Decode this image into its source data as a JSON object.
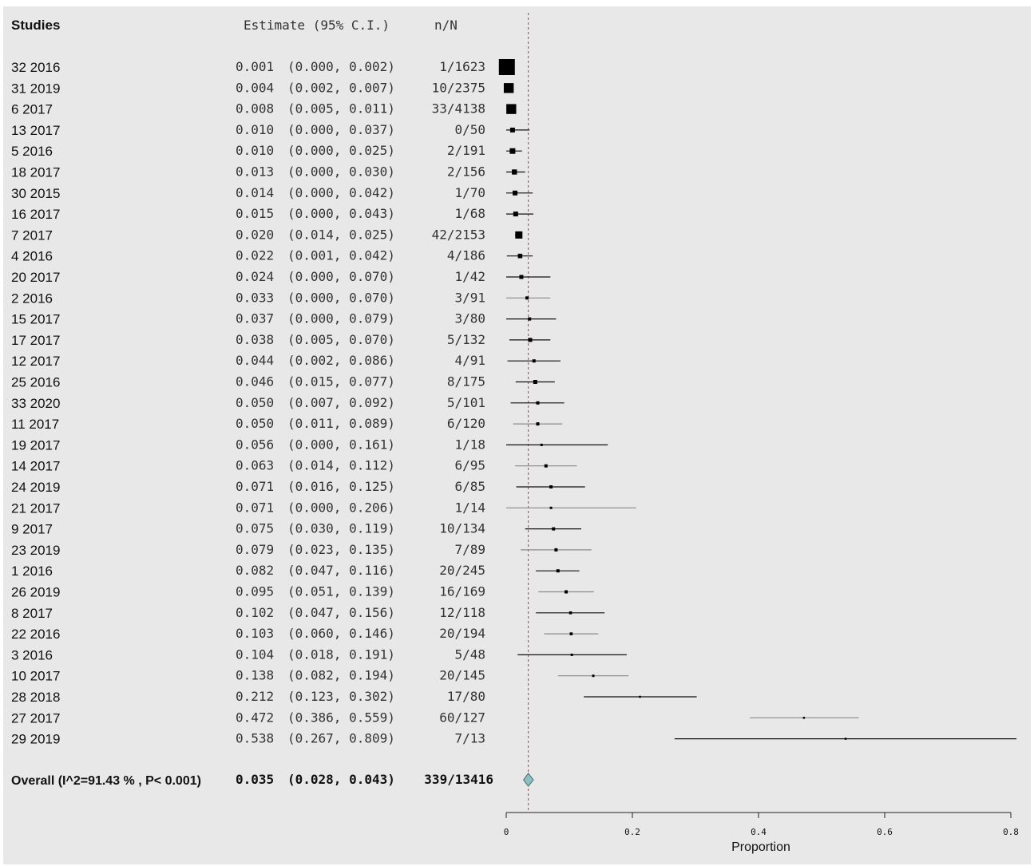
{
  "chart_data": {
    "type": "forest",
    "headers": {
      "studies": "Studies",
      "estimate": "Estimate (95% C.I.)",
      "nN": "n/N"
    },
    "studies": [
      {
        "label": "32 2016",
        "est": 0.001,
        "lo": 0.0,
        "hi": 0.002,
        "est_text": "0.001",
        "ci_text": "(0.000, 0.002)",
        "nN": "1/1623",
        "weight": 1.0
      },
      {
        "label": "31 2019",
        "est": 0.004,
        "lo": 0.002,
        "hi": 0.007,
        "est_text": "0.004",
        "ci_text": "(0.002, 0.007)",
        "nN": "10/2375",
        "weight": 0.62
      },
      {
        "label": "6 2017",
        "est": 0.008,
        "lo": 0.005,
        "hi": 0.011,
        "est_text": "0.008",
        "ci_text": "(0.005, 0.011)",
        "nN": "33/4138",
        "weight": 0.62
      },
      {
        "label": "13 2017",
        "est": 0.01,
        "lo": 0.0,
        "hi": 0.037,
        "est_text": "0.010",
        "ci_text": "(0.000, 0.037)",
        "nN": "0/50",
        "weight": 0.3
      },
      {
        "label": "5 2016",
        "est": 0.01,
        "lo": 0.0,
        "hi": 0.025,
        "est_text": "0.010",
        "ci_text": "(0.000, 0.025)",
        "nN": "2/191",
        "weight": 0.35
      },
      {
        "label": "18 2017",
        "est": 0.013,
        "lo": 0.0,
        "hi": 0.03,
        "est_text": "0.013",
        "ci_text": "(0.000, 0.030)",
        "nN": "2/156",
        "weight": 0.32
      },
      {
        "label": "30 2015",
        "est": 0.014,
        "lo": 0.0,
        "hi": 0.042,
        "est_text": "0.014",
        "ci_text": "(0.000, 0.042)",
        "nN": "1/70",
        "weight": 0.3
      },
      {
        "label": "16 2017",
        "est": 0.015,
        "lo": 0.0,
        "hi": 0.043,
        "est_text": "0.015",
        "ci_text": "(0.000, 0.043)",
        "nN": "1/68",
        "weight": 0.3
      },
      {
        "label": "7 2017",
        "est": 0.02,
        "lo": 0.014,
        "hi": 0.025,
        "est_text": "0.020",
        "ci_text": "(0.014, 0.025)",
        "nN": "42/2153",
        "weight": 0.45
      },
      {
        "label": "4 2016",
        "est": 0.022,
        "lo": 0.001,
        "hi": 0.042,
        "est_text": "0.022",
        "ci_text": "(0.001, 0.042)",
        "nN": "4/186",
        "weight": 0.28
      },
      {
        "label": "20 2017",
        "est": 0.024,
        "lo": 0.0,
        "hi": 0.07,
        "est_text": "0.024",
        "ci_text": "(0.000, 0.070)",
        "nN": "1/42",
        "weight": 0.25
      },
      {
        "label": "2 2016",
        "est": 0.033,
        "lo": 0.0,
        "hi": 0.07,
        "est_text": "0.033",
        "ci_text": "(0.000, 0.070)",
        "nN": "3/91",
        "weight": 0.2
      },
      {
        "label": "15 2017",
        "est": 0.037,
        "lo": 0.0,
        "hi": 0.079,
        "est_text": "0.037",
        "ci_text": "(0.000, 0.079)",
        "nN": "3/80",
        "weight": 0.2
      },
      {
        "label": "17 2017",
        "est": 0.038,
        "lo": 0.005,
        "hi": 0.07,
        "est_text": "0.038",
        "ci_text": "(0.005, 0.070)",
        "nN": "5/132",
        "weight": 0.25
      },
      {
        "label": "12 2017",
        "est": 0.044,
        "lo": 0.002,
        "hi": 0.086,
        "est_text": "0.044",
        "ci_text": "(0.002, 0.086)",
        "nN": "4/91",
        "weight": 0.2
      },
      {
        "label": "25 2016",
        "est": 0.046,
        "lo": 0.015,
        "hi": 0.077,
        "est_text": "0.046",
        "ci_text": "(0.015, 0.077)",
        "nN": "8/175",
        "weight": 0.25
      },
      {
        "label": "33 2020",
        "est": 0.05,
        "lo": 0.007,
        "hi": 0.092,
        "est_text": "0.050",
        "ci_text": "(0.007, 0.092)",
        "nN": "5/101",
        "weight": 0.2
      },
      {
        "label": "11 2017",
        "est": 0.05,
        "lo": 0.011,
        "hi": 0.089,
        "est_text": "0.050",
        "ci_text": "(0.011, 0.089)",
        "nN": "6/120",
        "weight": 0.2
      },
      {
        "label": "19 2017",
        "est": 0.056,
        "lo": 0.0,
        "hi": 0.161,
        "est_text": "0.056",
        "ci_text": "(0.000, 0.161)",
        "nN": "1/18",
        "weight": 0.15
      },
      {
        "label": "14 2017",
        "est": 0.063,
        "lo": 0.014,
        "hi": 0.112,
        "est_text": "0.063",
        "ci_text": "(0.014, 0.112)",
        "nN": "6/95",
        "weight": 0.2
      },
      {
        "label": "24 2019",
        "est": 0.071,
        "lo": 0.016,
        "hi": 0.125,
        "est_text": "0.071",
        "ci_text": "(0.016, 0.125)",
        "nN": "6/85",
        "weight": 0.2
      },
      {
        "label": "21 2017",
        "est": 0.071,
        "lo": 0.0,
        "hi": 0.206,
        "est_text": "0.071",
        "ci_text": "(0.000, 0.206)",
        "nN": "1/14",
        "weight": 0.15
      },
      {
        "label": "9 2017",
        "est": 0.075,
        "lo": 0.03,
        "hi": 0.119,
        "est_text": "0.075",
        "ci_text": "(0.030, 0.119)",
        "nN": "10/134",
        "weight": 0.2
      },
      {
        "label": "23 2019",
        "est": 0.079,
        "lo": 0.023,
        "hi": 0.135,
        "est_text": "0.079",
        "ci_text": "(0.023, 0.135)",
        "nN": "7/89",
        "weight": 0.2
      },
      {
        "label": "1 2016",
        "est": 0.082,
        "lo": 0.047,
        "hi": 0.116,
        "est_text": "0.082",
        "ci_text": "(0.047, 0.116)",
        "nN": "20/245",
        "weight": 0.2
      },
      {
        "label": "26 2019",
        "est": 0.095,
        "lo": 0.051,
        "hi": 0.139,
        "est_text": "0.095",
        "ci_text": "(0.051, 0.139)",
        "nN": "16/169",
        "weight": 0.2
      },
      {
        "label": "8 2017",
        "est": 0.102,
        "lo": 0.047,
        "hi": 0.156,
        "est_text": "0.102",
        "ci_text": "(0.047, 0.156)",
        "nN": "12/118",
        "weight": 0.18
      },
      {
        "label": "22 2016",
        "est": 0.103,
        "lo": 0.06,
        "hi": 0.146,
        "est_text": "0.103",
        "ci_text": "(0.060, 0.146)",
        "nN": "20/194",
        "weight": 0.18
      },
      {
        "label": "3 2016",
        "est": 0.104,
        "lo": 0.018,
        "hi": 0.191,
        "est_text": "0.104",
        "ci_text": "(0.018, 0.191)",
        "nN": "5/48",
        "weight": 0.15
      },
      {
        "label": "10 2017",
        "est": 0.138,
        "lo": 0.082,
        "hi": 0.194,
        "est_text": "0.138",
        "ci_text": "(0.082, 0.194)",
        "nN": "20/145",
        "weight": 0.15
      },
      {
        "label": "28 2018",
        "est": 0.212,
        "lo": 0.123,
        "hi": 0.302,
        "est_text": "0.212",
        "ci_text": "(0.123, 0.302)",
        "nN": "17/80",
        "weight": 0.12
      },
      {
        "label": "27 2017",
        "est": 0.472,
        "lo": 0.386,
        "hi": 0.559,
        "est_text": "0.472",
        "ci_text": "(0.386, 0.559)",
        "nN": "60/127",
        "weight": 0.12
      },
      {
        "label": "29 2019",
        "est": 0.538,
        "lo": 0.267,
        "hi": 0.809,
        "est_text": "0.538",
        "ci_text": "(0.267, 0.809)",
        "nN": "7/13",
        "weight": 0.1
      }
    ],
    "overall": {
      "label": "Overall (I^2=91.43 % , P< 0.001)",
      "est": 0.035,
      "lo": 0.028,
      "hi": 0.043,
      "est_text": "0.035",
      "ci_text": "(0.028, 0.043)",
      "nN": "339/13416"
    },
    "xaxis": {
      "label": "Proportion",
      "min": 0,
      "max": 0.8,
      "ticks": [
        0,
        0.2,
        0.4,
        0.6,
        0.8
      ],
      "tick_labels": [
        "0",
        "0.2",
        "0.4",
        "0.6",
        "0.8"
      ]
    },
    "reference_line": 0.035,
    "colors": {
      "box": "#000000",
      "ci_line": "#111111",
      "ci_line_faint": "#8a8a8a",
      "ref_line": "#c03a3a",
      "diamond": "#8fbfc0",
      "background": "#e8e8e8"
    }
  }
}
